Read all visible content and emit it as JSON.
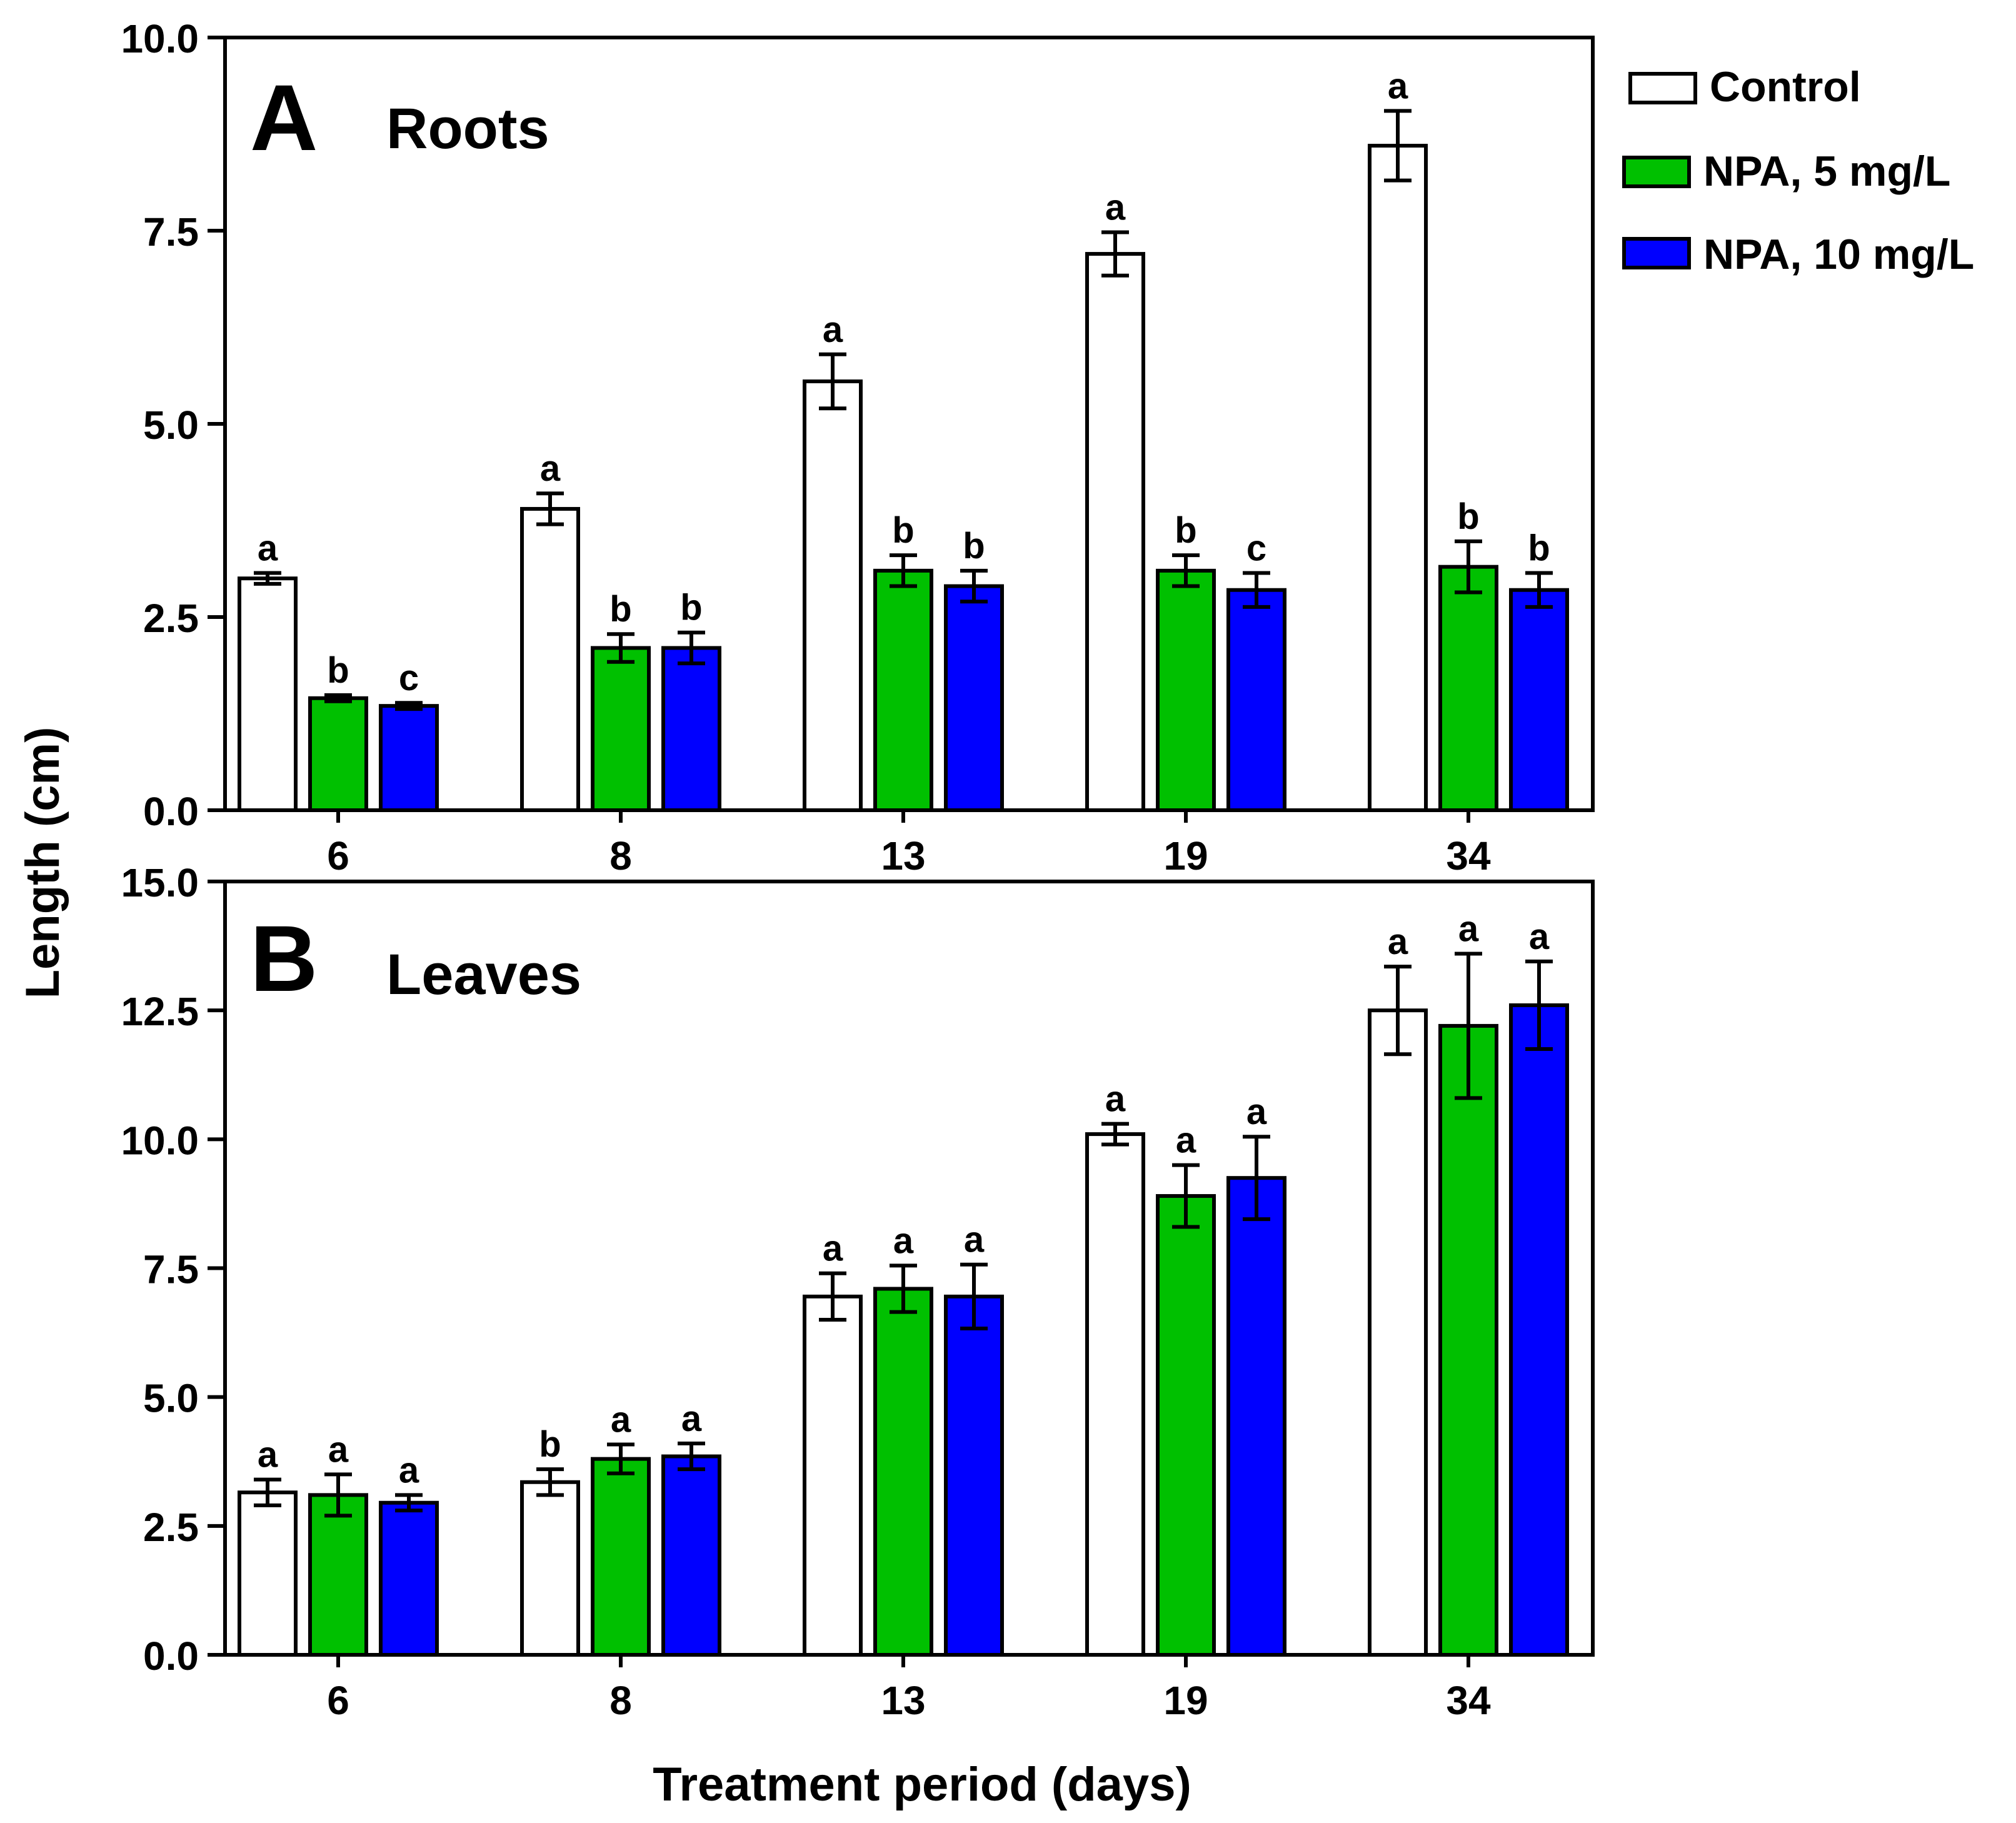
{
  "figure": {
    "ylabel": "Length (cm)",
    "xlabel": "Treatment period (days)"
  },
  "legend": {
    "position": "top-right",
    "items": [
      {
        "label": "Control",
        "color": "#ffffff"
      },
      {
        "label": "NPA, 5 mg/L",
        "color": "#00c000"
      },
      {
        "label": "NPA, 10 mg/L",
        "color": "#0000ff"
      }
    ]
  },
  "chart_data": [
    {
      "type": "bar",
      "panel_letter": "A",
      "title": "Roots",
      "categories": [
        "6",
        "8",
        "13",
        "19",
        "34"
      ],
      "ylim": [
        0,
        10
      ],
      "yticks": [
        "0.0",
        "2.5",
        "5.0",
        "7.5",
        "10.0"
      ],
      "ytick_values": [
        0,
        2.5,
        5,
        7.5,
        10
      ],
      "series": [
        {
          "name": "Control",
          "color": "#ffffff",
          "values": [
            3.0,
            3.9,
            5.55,
            7.2,
            8.6
          ],
          "errors": [
            0.07,
            0.2,
            0.35,
            0.28,
            0.45
          ],
          "letters": [
            "a",
            "a",
            "a",
            "a",
            "a"
          ]
        },
        {
          "name": "NPA, 5 mg/L",
          "color": "#00c000",
          "values": [
            1.45,
            2.1,
            3.1,
            3.1,
            3.15
          ],
          "errors": [
            0.04,
            0.18,
            0.2,
            0.2,
            0.33
          ],
          "letters": [
            "b",
            "b",
            "b",
            "b",
            "b"
          ]
        },
        {
          "name": "NPA, 10 mg/L",
          "color": "#0000ff",
          "values": [
            1.35,
            2.1,
            2.9,
            2.85,
            2.85
          ],
          "errors": [
            0.04,
            0.2,
            0.2,
            0.22,
            0.22
          ],
          "letters": [
            "c",
            "b",
            "b",
            "c",
            "b"
          ]
        }
      ]
    },
    {
      "type": "bar",
      "panel_letter": "B",
      "title": "Leaves",
      "categories": [
        "6",
        "8",
        "13",
        "19",
        "34"
      ],
      "ylim": [
        0,
        15
      ],
      "yticks": [
        "0.0",
        "2.5",
        "5.0",
        "7.5",
        "10.0",
        "12.5",
        "15.0"
      ],
      "ytick_values": [
        0,
        2.5,
        5,
        7.5,
        10,
        12.5,
        15
      ],
      "series": [
        {
          "name": "Control",
          "color": "#ffffff",
          "values": [
            3.15,
            3.35,
            6.95,
            10.1,
            12.5
          ],
          "errors": [
            0.25,
            0.25,
            0.45,
            0.2,
            0.85
          ],
          "letters": [
            "a",
            "b",
            "a",
            "a",
            "a"
          ]
        },
        {
          "name": "NPA, 5 mg/L",
          "color": "#00c000",
          "values": [
            3.1,
            3.8,
            7.1,
            8.9,
            12.2
          ],
          "errors": [
            0.4,
            0.28,
            0.45,
            0.6,
            1.4
          ],
          "letters": [
            "a",
            "a",
            "a",
            "a",
            "a"
          ]
        },
        {
          "name": "NPA, 10 mg/L",
          "color": "#0000ff",
          "values": [
            2.95,
            3.85,
            6.95,
            9.25,
            12.6
          ],
          "errors": [
            0.15,
            0.25,
            0.62,
            0.8,
            0.85
          ],
          "letters": [
            "a",
            "a",
            "a",
            "a",
            "a"
          ]
        }
      ]
    }
  ]
}
